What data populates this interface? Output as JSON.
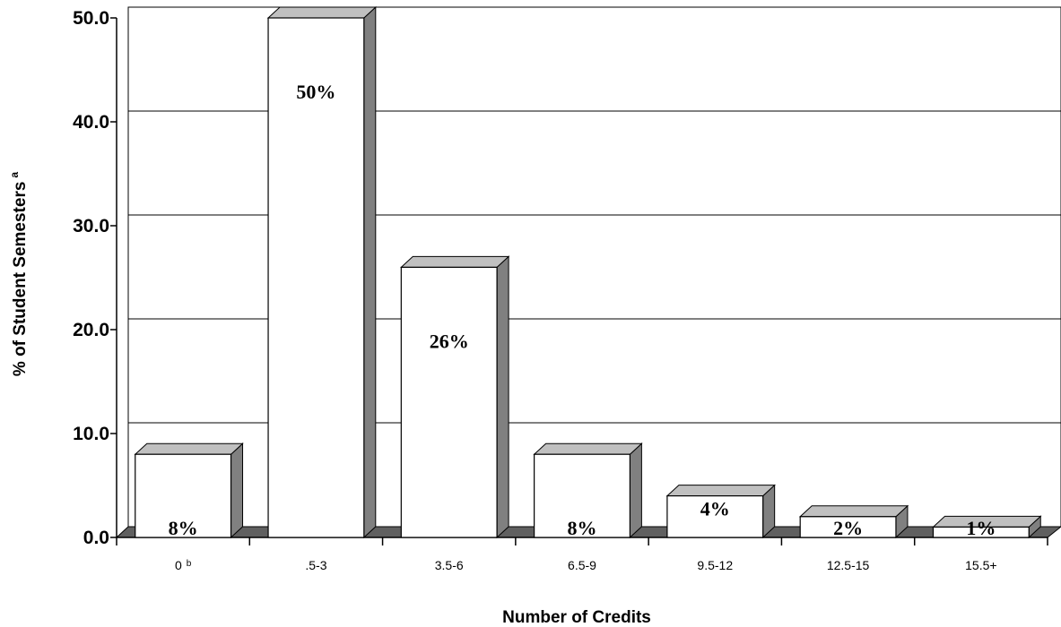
{
  "chart_data": {
    "type": "bar",
    "categories": [
      "0",
      ".5-3",
      "3.5-6",
      "6.5-9",
      "9.5-12",
      "12.5-15",
      "15.5+"
    ],
    "category_superscripts": [
      "b",
      "",
      "",
      "",
      "",
      "",
      ""
    ],
    "values": [
      8,
      50,
      26,
      8,
      4,
      2,
      1
    ],
    "data_labels": [
      "8%",
      "50%",
      "26%",
      "8%",
      "4%",
      "2%",
      "1%"
    ],
    "title": "",
    "xlabel": "Number of Credits",
    "ylabel": "% of Student Semesters",
    "ylabel_superscript": "a",
    "ylim": [
      0,
      50
    ],
    "yticks": [
      0,
      10,
      20,
      30,
      40,
      50
    ],
    "ytick_labels": [
      "0.0",
      "10.0",
      "20.0",
      "30.0",
      "40.0",
      "50.0"
    ],
    "grid": true,
    "style": "3d-column",
    "colors": {
      "bar_front": "#ffffff",
      "bar_side": "#808080",
      "bar_top": "#c0c0c0",
      "floor": "#606060",
      "outline": "#000000",
      "gridline": "#000000"
    }
  }
}
